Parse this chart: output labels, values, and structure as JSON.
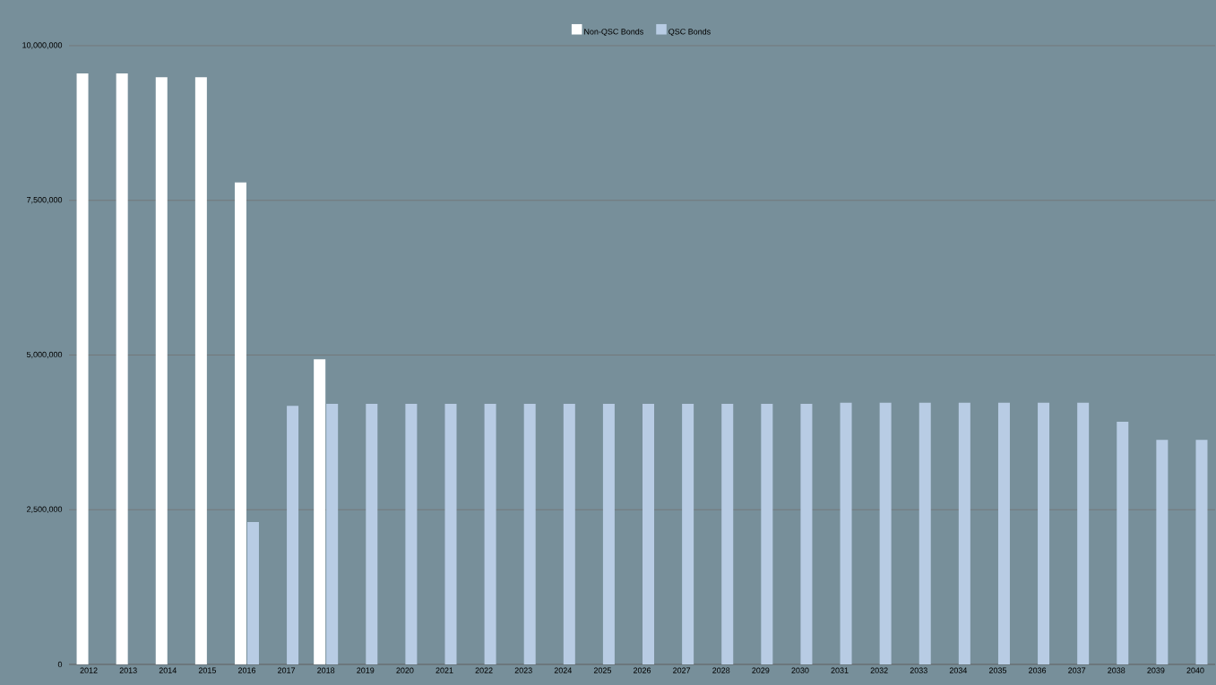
{
  "chart_data": {
    "type": "bar",
    "categories": [
      "2012",
      "2013",
      "2014",
      "2015",
      "2016",
      "2017",
      "2018",
      "2019",
      "2020",
      "2021",
      "2022",
      "2023",
      "2024",
      "2025",
      "2026",
      "2027",
      "2028",
      "2029",
      "2030",
      "2031",
      "2032",
      "2033",
      "2034",
      "2035",
      "2036",
      "2037",
      "2038",
      "2039",
      "2040"
    ],
    "series": [
      {
        "name": "Non-QSC Bonds",
        "color": "#ffffff",
        "values": [
          9550000,
          9550000,
          9490000,
          9490000,
          7790000,
          null,
          4930000,
          null,
          null,
          null,
          null,
          null,
          null,
          null,
          null,
          null,
          null,
          null,
          null,
          null,
          null,
          null,
          null,
          null,
          null,
          null,
          null,
          null,
          null
        ]
      },
      {
        "name": "QSC Bonds",
        "color": "#b8cce4",
        "values": [
          null,
          null,
          null,
          null,
          2300000,
          4180000,
          4210000,
          4210000,
          4210000,
          4210000,
          4210000,
          4210000,
          4210000,
          4210000,
          4210000,
          4210000,
          4210000,
          4210000,
          4210000,
          4230000,
          4230000,
          4230000,
          4230000,
          4230000,
          4230000,
          4230000,
          3920000,
          3630000,
          3630000
        ]
      }
    ],
    "ylim": [
      0,
      10000000
    ],
    "yticks": [
      {
        "value": 0,
        "label": "0"
      },
      {
        "value": 2500000,
        "label": "2,500,000"
      },
      {
        "value": 5000000,
        "label": "5,000,000"
      },
      {
        "value": 7500000,
        "label": "7,500,000"
      },
      {
        "value": 10000000,
        "label": "10,000,000"
      }
    ],
    "grid": "y",
    "legend": "top"
  }
}
